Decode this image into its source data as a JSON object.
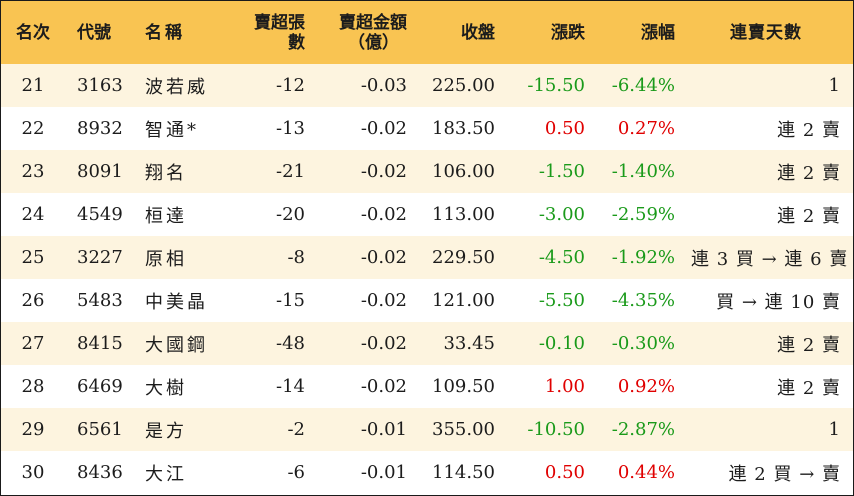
{
  "table": {
    "headers": {
      "rank": "名次",
      "code": "代號",
      "name": "名稱",
      "sell_lots": "賣超張數",
      "sell_amount_line1": "賣超金額",
      "sell_amount_line2": "（億）",
      "close": "收盤",
      "change": "漲跌",
      "change_pct": "漲幅",
      "streak": "連賣天數"
    },
    "colors": {
      "header_bg": "#f9c452",
      "row_alt_bg": "#fdf4df",
      "up": "#e00000",
      "down": "#1a9a1a"
    },
    "rows": [
      {
        "rank": "21",
        "code": "3163",
        "name": "波若威",
        "sell_lots": "-12",
        "sell_amount": "-0.03",
        "close": "225.00",
        "change": "-15.50",
        "change_pct": "-6.44%",
        "direction": "down",
        "streak": "1"
      },
      {
        "rank": "22",
        "code": "8932",
        "name": "智通*",
        "sell_lots": "-13",
        "sell_amount": "-0.02",
        "close": "183.50",
        "change": "0.50",
        "change_pct": "0.27%",
        "direction": "up",
        "streak": "連 2 賣"
      },
      {
        "rank": "23",
        "code": "8091",
        "name": "翔名",
        "sell_lots": "-21",
        "sell_amount": "-0.02",
        "close": "106.00",
        "change": "-1.50",
        "change_pct": "-1.40%",
        "direction": "down",
        "streak": "連 2 賣"
      },
      {
        "rank": "24",
        "code": "4549",
        "name": "桓達",
        "sell_lots": "-20",
        "sell_amount": "-0.02",
        "close": "113.00",
        "change": "-3.00",
        "change_pct": "-2.59%",
        "direction": "down",
        "streak": "連 2 賣"
      },
      {
        "rank": "25",
        "code": "3227",
        "name": "原相",
        "sell_lots": "-8",
        "sell_amount": "-0.02",
        "close": "229.50",
        "change": "-4.50",
        "change_pct": "-1.92%",
        "direction": "down",
        "streak": "連 3 買 → 連 6 賣"
      },
      {
        "rank": "26",
        "code": "5483",
        "name": "中美晶",
        "sell_lots": "-15",
        "sell_amount": "-0.02",
        "close": "121.00",
        "change": "-5.50",
        "change_pct": "-4.35%",
        "direction": "down",
        "streak": "買 → 連 10 賣"
      },
      {
        "rank": "27",
        "code": "8415",
        "name": "大國鋼",
        "sell_lots": "-48",
        "sell_amount": "-0.02",
        "close": "33.45",
        "change": "-0.10",
        "change_pct": "-0.30%",
        "direction": "down",
        "streak": "連 2 賣"
      },
      {
        "rank": "28",
        "code": "6469",
        "name": "大樹",
        "sell_lots": "-14",
        "sell_amount": "-0.02",
        "close": "109.50",
        "change": "1.00",
        "change_pct": "0.92%",
        "direction": "up",
        "streak": "連 2 賣"
      },
      {
        "rank": "29",
        "code": "6561",
        "name": "是方",
        "sell_lots": "-2",
        "sell_amount": "-0.01",
        "close": "355.00",
        "change": "-10.50",
        "change_pct": "-2.87%",
        "direction": "down",
        "streak": "1"
      },
      {
        "rank": "30",
        "code": "8436",
        "name": "大江",
        "sell_lots": "-6",
        "sell_amount": "-0.01",
        "close": "114.50",
        "change": "0.50",
        "change_pct": "0.44%",
        "direction": "up",
        "streak": "連 2 買 → 賣"
      }
    ]
  }
}
